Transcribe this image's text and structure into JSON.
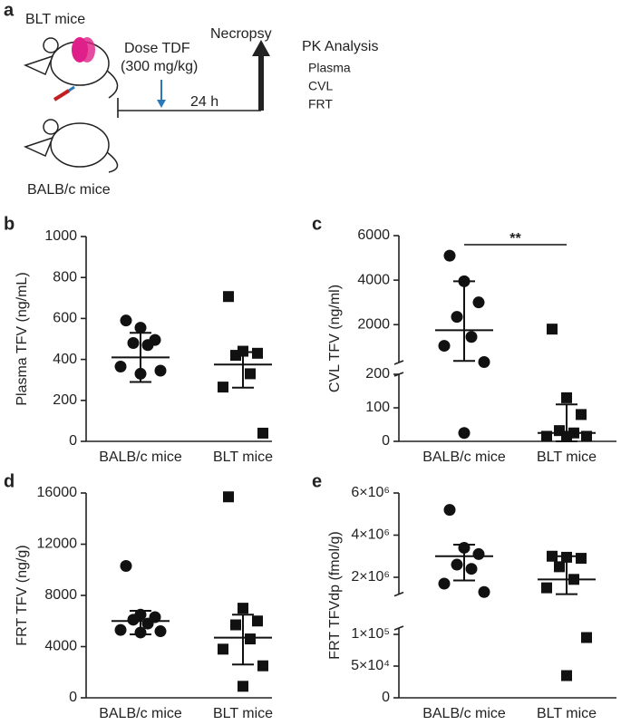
{
  "diagram": {
    "label": "a",
    "blt": "BLT mice",
    "balb": "BALB/c mice",
    "dose": "Dose TDF",
    "dose_amount": "(300 mg/kg)",
    "interval": "24 h",
    "necropsy": "Necropsy",
    "pk_title": "PK Analysis",
    "pk_items": [
      "Plasma",
      "CVL",
      "FRT"
    ]
  },
  "chart_data": [
    {
      "type": "dot",
      "label": "b",
      "ylabel": "Plasma TFV (ng/mL)",
      "categories": [
        "BALB/c mice",
        "BLT mice"
      ],
      "segments": [
        {
          "ylim": [
            0,
            1000
          ],
          "yticks": [
            0,
            200,
            400,
            600,
            800,
            1000
          ]
        }
      ],
      "groups": [
        {
          "marker": "circle",
          "values": [
            590,
            555,
            495,
            480,
            470,
            365,
            345,
            330
          ],
          "mean": 410,
          "err": [
            290,
            530
          ]
        },
        {
          "marker": "square",
          "values": [
            707,
            440,
            430,
            420,
            330,
            265,
            40
          ],
          "mean": 375,
          "err": [
            262,
            436
          ]
        }
      ]
    },
    {
      "type": "dot",
      "label": "c",
      "ylabel": "CVL TFV (ng/ml)",
      "categories": [
        "BALB/c mice",
        "BLT mice"
      ],
      "significance": "**",
      "segments": [
        {
          "ylim": [
            0,
            200
          ],
          "yticks": [
            0,
            100,
            200
          ]
        },
        {
          "ylim": [
            300,
            6000
          ],
          "yticks": [
            2000,
            4000,
            6000
          ]
        }
      ],
      "groups": [
        {
          "marker": "circle",
          "values": [
            5100,
            3950,
            3000,
            2350,
            1450,
            1050,
            320,
            25
          ],
          "mean": 1750,
          "err": [
            370,
            3950
          ]
        },
        {
          "marker": "square",
          "values": [
            1800,
            130,
            80,
            32,
            25,
            15,
            15,
            15
          ],
          "mean": 25,
          "err": [
            0,
            110
          ]
        }
      ]
    },
    {
      "type": "dot",
      "label": "d",
      "ylabel": "FRT TFV (ng/g)",
      "categories": [
        "BALB/c mice",
        "BLT mice"
      ],
      "segments": [
        {
          "ylim": [
            0,
            16000
          ],
          "yticks": [
            0,
            4000,
            8000,
            12000,
            16000
          ]
        }
      ],
      "groups": [
        {
          "marker": "circle",
          "values": [
            10300,
            6500,
            6300,
            6100,
            5800,
            5300,
            5200,
            5100
          ],
          "mean": 6000,
          "err": [
            4960,
            6800
          ]
        },
        {
          "marker": "square",
          "values": [
            15700,
            7000,
            6000,
            5700,
            4600,
            3800,
            2500,
            900
          ],
          "mean": 4700,
          "err": [
            2600,
            6500
          ]
        }
      ]
    },
    {
      "type": "dot",
      "label": "e",
      "ylabel": "FRT TFVdp (fmol/g)",
      "categories": [
        "BALB/c mice",
        "BLT mice"
      ],
      "segments": [
        {
          "ylim": [
            0,
            110000
          ],
          "yticks": [
            0,
            {
              "value": 50000,
              "label": "5×10⁴"
            },
            {
              "value": 100000,
              "label": "1×10⁵"
            }
          ]
        },
        {
          "ylim": [
            1200000,
            6000000
          ],
          "yticks": [
            {
              "value": 2000000,
              "label": "2×10⁶"
            },
            {
              "value": 4000000,
              "label": "4×10⁶"
            },
            {
              "value": 6000000,
              "label": "6×10⁶"
            }
          ]
        }
      ],
      "groups": [
        {
          "marker": "circle",
          "values": [
            5200000,
            3400000,
            3100000,
            2600000,
            2400000,
            1700000,
            1300000
          ],
          "mean": 3000000,
          "err": [
            1850000,
            3550000
          ]
        },
        {
          "marker": "square",
          "values": [
            3000000,
            2950000,
            2900000,
            2500000,
            1900000,
            1500000,
            95000,
            35000
          ],
          "mean": 1900000,
          "err": [
            1200000,
            3000000
          ]
        }
      ]
    }
  ]
}
